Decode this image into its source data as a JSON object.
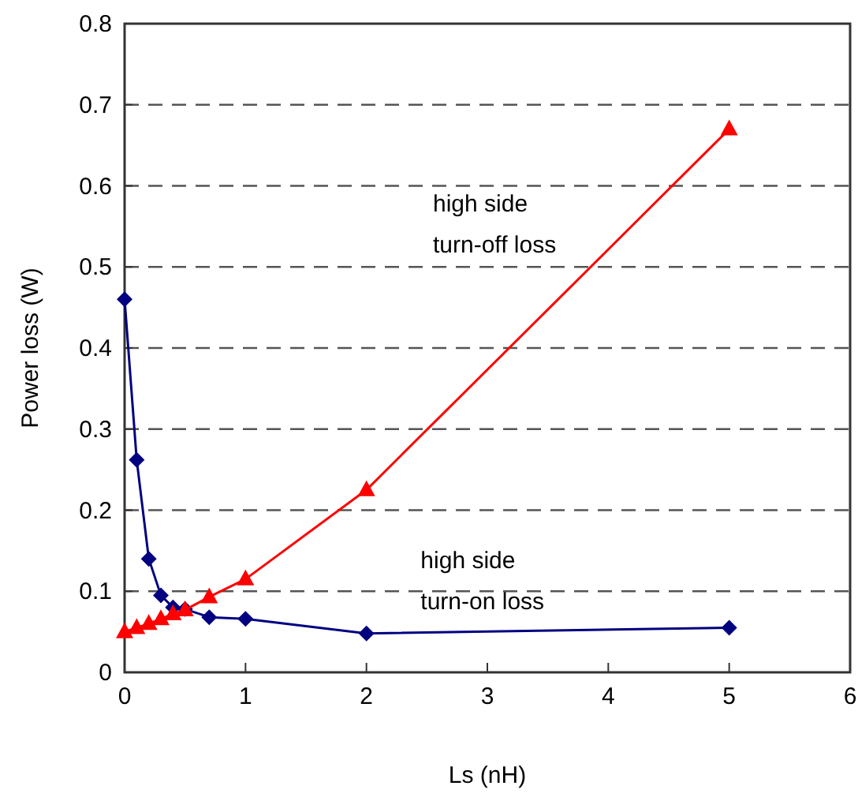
{
  "chart_data": {
    "type": "line",
    "xlabel": "Ls (nH)",
    "ylabel": "Power loss (W)",
    "xlim": [
      0,
      6
    ],
    "xticks": [
      0,
      1,
      2,
      3,
      4,
      5,
      6
    ],
    "ylim": [
      0,
      0.8
    ],
    "yticks": [
      0,
      0.1,
      0.2,
      0.3,
      0.4,
      0.5,
      0.6,
      0.7,
      0.8
    ],
    "grid": "y",
    "x": [
      0,
      0.1,
      0.2,
      0.3,
      0.4,
      0.5,
      0.7,
      1,
      2,
      5
    ],
    "series": [
      {
        "color": "#000080",
        "marker": "diamond",
        "values": [
          0.46,
          0.262,
          0.14,
          0.095,
          0.08,
          0.078,
          0.068,
          0.066,
          0.048,
          0.055
        ]
      },
      {
        "color": "#ff0000",
        "marker": "triangle",
        "values": [
          0.05,
          0.055,
          0.06,
          0.066,
          0.072,
          0.077,
          0.093,
          0.115,
          0.225,
          0.67
        ]
      }
    ],
    "annotations": [
      "high side\nturn-off loss",
      "high side\nturn-on loss"
    ]
  }
}
